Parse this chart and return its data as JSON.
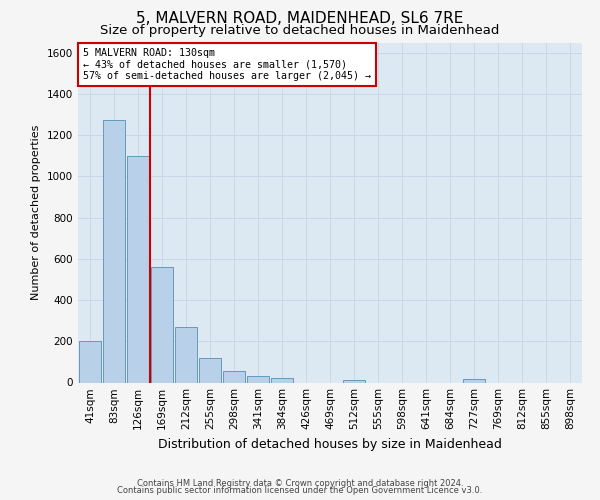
{
  "title": "5, MALVERN ROAD, MAIDENHEAD, SL6 7RE",
  "subtitle": "Size of property relative to detached houses in Maidenhead",
  "xlabel": "Distribution of detached houses by size in Maidenhead",
  "ylabel": "Number of detached properties",
  "footer_line1": "Contains HM Land Registry data © Crown copyright and database right 2024.",
  "footer_line2": "Contains public sector information licensed under the Open Government Licence v3.0.",
  "bar_labels": [
    "41sqm",
    "83sqm",
    "126sqm",
    "169sqm",
    "212sqm",
    "255sqm",
    "298sqm",
    "341sqm",
    "384sqm",
    "426sqm",
    "469sqm",
    "512sqm",
    "555sqm",
    "598sqm",
    "641sqm",
    "684sqm",
    "727sqm",
    "769sqm",
    "812sqm",
    "855sqm",
    "898sqm"
  ],
  "bar_values": [
    200,
    1275,
    1100,
    560,
    270,
    120,
    57,
    32,
    22,
    0,
    0,
    14,
    0,
    0,
    0,
    0,
    18,
    0,
    0,
    0,
    0
  ],
  "bar_color": "#b8d0e8",
  "bar_edge_color": "#6699bb",
  "vline_x": 2.5,
  "vline_color": "#cc0000",
  "annotation_text": "5 MALVERN ROAD: 130sqm\n← 43% of detached houses are smaller (1,570)\n57% of semi-detached houses are larger (2,045) →",
  "ylim": [
    0,
    1650
  ],
  "yticks": [
    0,
    200,
    400,
    600,
    800,
    1000,
    1200,
    1400,
    1600
  ],
  "grid_color": "#c8d8e8",
  "plot_bg_color": "#dce8f2",
  "fig_bg_color": "#f5f5f5",
  "title_fontsize": 11,
  "subtitle_fontsize": 9.5,
  "xlabel_fontsize": 9,
  "ylabel_fontsize": 8,
  "tick_fontsize": 7.5,
  "footer_fontsize": 6.0
}
